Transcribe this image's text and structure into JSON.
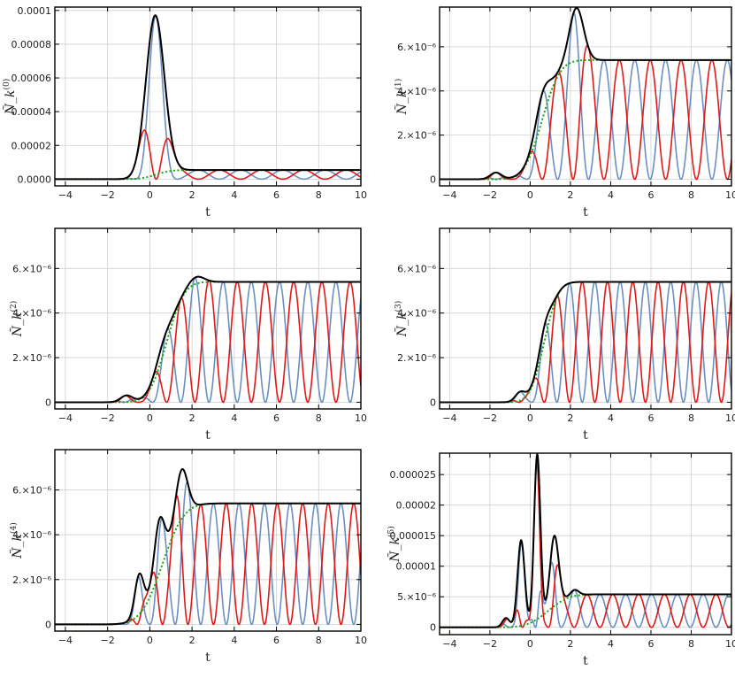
{
  "figure": {
    "colors": {
      "blue": "#6b8fc0",
      "red": "#e01818",
      "black": "#000000",
      "green": "#16a80e"
    },
    "series_names": [
      "blue oscillating component",
      "red oscillating component",
      "black envelope",
      "green dotted average"
    ]
  },
  "chart_data": [
    {
      "type": "line",
      "panel": "top-left",
      "xlabel": "t",
      "ylabel": "Ñ_k",
      "ylabel_sup": "(0)",
      "xlim": [
        -4.5,
        10
      ],
      "ylim": [
        -4e-06,
        0.000102
      ],
      "xticks": [
        "-4",
        "-2",
        "0",
        "2",
        "4",
        "6",
        "8",
        "10"
      ],
      "yticks": [
        {
          "v": 0,
          "label": "0.0000"
        },
        {
          "v": 2e-05,
          "label": "0.00002"
        },
        {
          "v": 4e-05,
          "label": "0.00004"
        },
        {
          "v": 6e-05,
          "label": "0.00006"
        },
        {
          "v": 8e-05,
          "label": "0.00008"
        },
        {
          "v": 0.0001,
          "label": "0.0001"
        }
      ],
      "model": {
        "Ninf": 5.4e-06,
        "peaks": [
          [
            0.25,
            9.46e-05,
            0.62
          ]
        ],
        "omega": 3.14,
        "sigma": 0.55,
        "center": 0.3
      }
    },
    {
      "type": "line",
      "panel": "top-right",
      "xlabel": "t",
      "ylabel": "Ñ_k",
      "ylabel_sup": "(1)",
      "xlim": [
        -4.5,
        10
      ],
      "ylim": [
        -3e-07,
        7.8e-06
      ],
      "xticks": [
        "-4",
        "-2",
        "0",
        "2",
        "4",
        "6",
        "8",
        "10"
      ],
      "yticks": [
        {
          "v": 0,
          "label": "0"
        },
        {
          "v": 2e-06,
          "label": "2.×10⁻⁶"
        },
        {
          "v": 4e-06,
          "label": "4.×10⁻⁶"
        },
        {
          "v": 6e-06,
          "label": "6.×10⁻⁶"
        }
      ],
      "model": {
        "Ninf": 5.4e-06,
        "peaks": [
          [
            -1.7,
            3e-07,
            0.4
          ],
          [
            0.6,
            1.2e-06,
            0.5
          ],
          [
            2.3,
            2.4e-06,
            0.5
          ]
        ],
        "omega": 4.1,
        "sigma": 0.7,
        "center": 0.6
      }
    },
    {
      "type": "line",
      "panel": "middle-left",
      "xlabel": "t",
      "ylabel": "Ñ_k",
      "ylabel_sup": "(2)",
      "xlim": [
        -4.5,
        10
      ],
      "ylim": [
        -3e-07,
        7.8e-06
      ],
      "xticks": [
        "-4",
        "-2",
        "0",
        "2",
        "4",
        "6",
        "8",
        "10"
      ],
      "yticks": [
        {
          "v": 0,
          "label": "0"
        },
        {
          "v": 2e-06,
          "label": "2.×10⁻⁶"
        },
        {
          "v": 4e-06,
          "label": "4.×10⁻⁶"
        },
        {
          "v": 6e-06,
          "label": "6.×10⁻⁶"
        }
      ],
      "model": {
        "Ninf": 5.4e-06,
        "peaks": [
          [
            -1.1,
            3e-07,
            0.4
          ],
          [
            0.6,
            6e-07,
            0.5
          ],
          [
            2.2,
            3e-07,
            0.5
          ]
        ],
        "omega": 4.7,
        "sigma": 0.65,
        "center": 0.8
      }
    },
    {
      "type": "line",
      "panel": "middle-right",
      "xlabel": "t",
      "ylabel": "Ñ_k",
      "ylabel_sup": "(3)",
      "xlim": [
        -4.5,
        10
      ],
      "ylim": [
        -3e-07,
        7.8e-06
      ],
      "xticks": [
        "-4",
        "-2",
        "0",
        "2",
        "4",
        "6",
        "8",
        "10"
      ],
      "yticks": [
        {
          "v": 0,
          "label": "0"
        },
        {
          "v": 2e-06,
          "label": "2.×10⁻⁶"
        },
        {
          "v": 4e-06,
          "label": "4.×10⁻⁶"
        },
        {
          "v": 6e-06,
          "label": "6.×10⁻⁶"
        }
      ],
      "model": {
        "Ninf": 5.4e-06,
        "peaks": [
          [
            -0.5,
            4e-07,
            0.35
          ],
          [
            0.7,
            7e-07,
            0.4
          ]
        ],
        "omega": 5.0,
        "sigma": 0.55,
        "center": 0.7
      }
    },
    {
      "type": "line",
      "panel": "bottom-left",
      "xlabel": "t",
      "ylabel": "Ñ_k",
      "ylabel_sup": "(4)",
      "xlim": [
        -4.5,
        10
      ],
      "ylim": [
        -3e-07,
        7.8e-06
      ],
      "xticks": [
        "-4",
        "-2",
        "0",
        "2",
        "4",
        "6",
        "8",
        "10"
      ],
      "yticks": [
        {
          "v": 0,
          "label": "0"
        },
        {
          "v": 2e-06,
          "label": "2.×10⁻⁶"
        },
        {
          "v": 4e-06,
          "label": "4.×10⁻⁶"
        },
        {
          "v": 6e-06,
          "label": "6.×10⁻⁶"
        }
      ],
      "model": {
        "Ninf": 5.4e-06,
        "peaks": [
          [
            -0.5,
            1.8e-06,
            0.3
          ],
          [
            0.45,
            2.4e-06,
            0.35
          ],
          [
            1.5,
            2.2e-06,
            0.4
          ]
        ],
        "omega": 5.2,
        "sigma": 0.8,
        "center": 0.6
      }
    },
    {
      "type": "line",
      "panel": "bottom-right",
      "xlabel": "t",
      "ylabel": "Ñ_k",
      "ylabel_sup": "(5)",
      "xlim": [
        -4.5,
        10
      ],
      "ylim": [
        -1.2e-06,
        2.85e-05
      ],
      "xticks": [
        "-4",
        "-2",
        "0",
        "2",
        "4",
        "6",
        "8",
        "10"
      ],
      "yticks": [
        {
          "v": 0,
          "label": "0"
        },
        {
          "v": 5e-06,
          "label": "5.×10⁻⁶"
        },
        {
          "v": 1e-05,
          "label": "0.00001"
        },
        {
          "v": 1.5e-05,
          "label": "0.000015"
        },
        {
          "v": 2e-05,
          "label": "0.00002"
        },
        {
          "v": 2.5e-05,
          "label": "0.000025"
        }
      ],
      "model": {
        "Ninf": 5.4e-06,
        "peaks": [
          [
            -1.2,
            1.5e-06,
            0.25
          ],
          [
            -0.45,
            1.4e-05,
            0.25
          ],
          [
            0.35,
            2.7e-05,
            0.22
          ],
          [
            1.2,
            1.15e-05,
            0.3
          ],
          [
            2.2,
            1e-06,
            0.3
          ]
        ],
        "omega": 4.9,
        "sigma": 0.8,
        "center": 0.9
      }
    }
  ]
}
